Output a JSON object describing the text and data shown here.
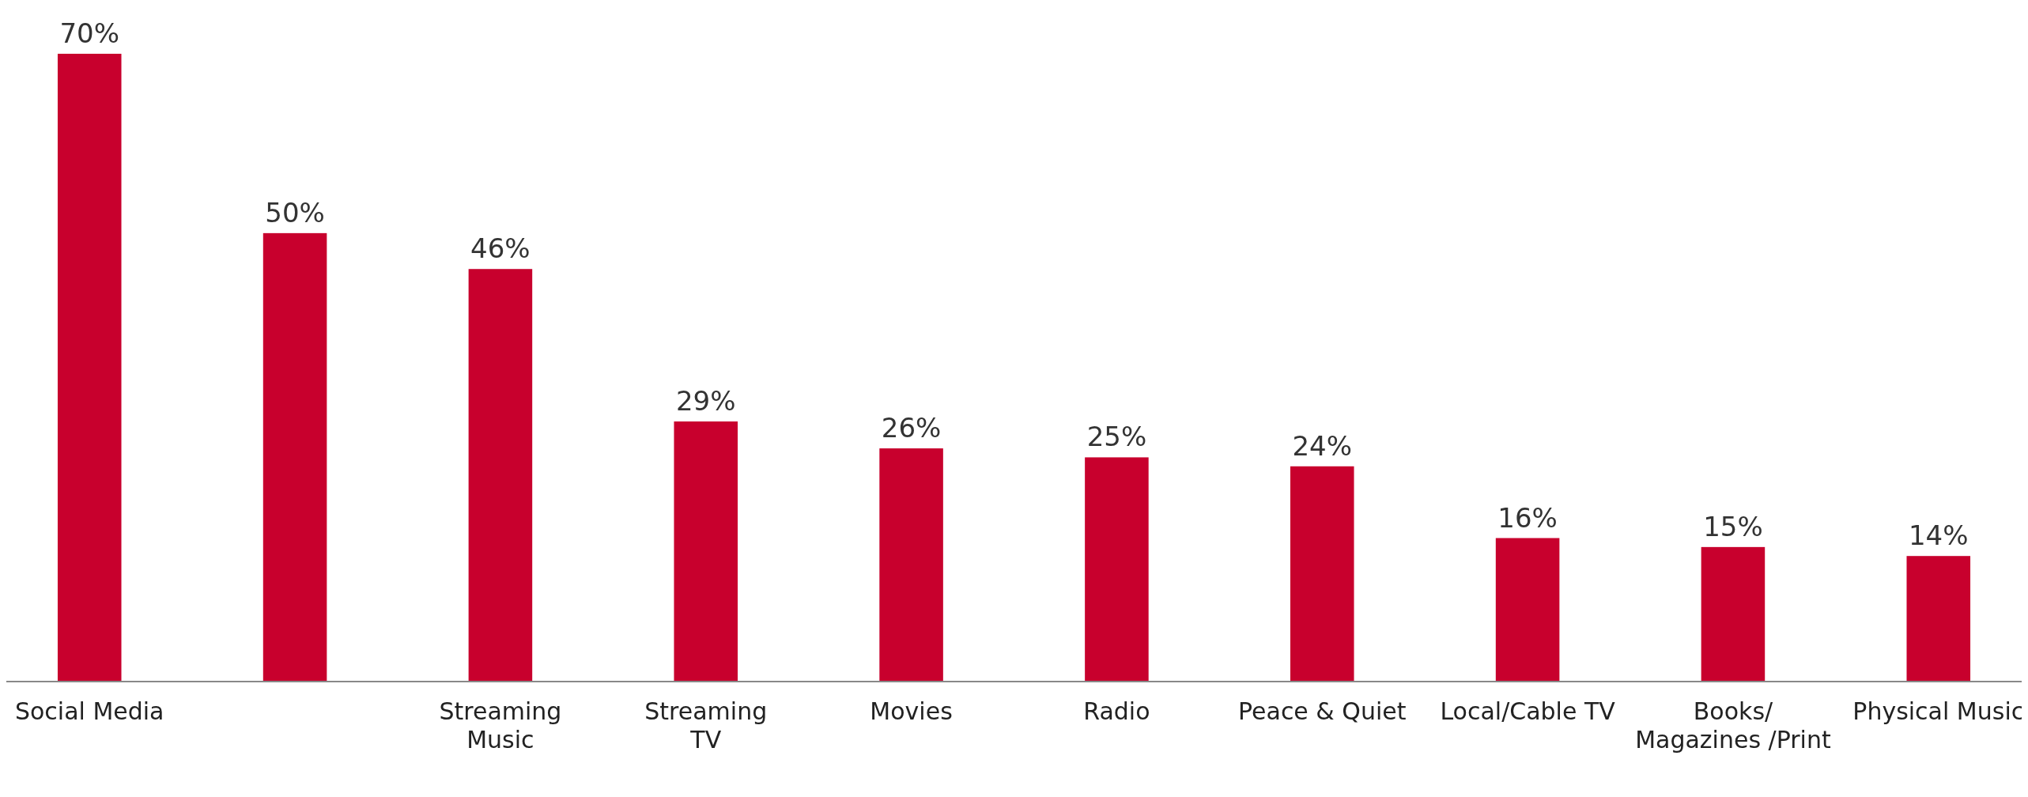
{
  "chart_data": {
    "type": "bar",
    "categories": [
      "Social Media",
      null,
      "Streaming\nMusic",
      "Streaming\nTV",
      "Movies",
      "Radio",
      "Peace & Quiet",
      "Local/Cable TV",
      "Books/\nMagazines /Print",
      "Physical Music"
    ],
    "values": [
      70,
      50,
      46,
      29,
      26,
      25,
      24,
      16,
      15,
      14
    ],
    "value_labels": [
      "70%",
      "50%",
      "46%",
      "29%",
      "26%",
      "25%",
      "24%",
      "16%",
      "15%",
      "14%"
    ],
    "color": "#c8002d"
  }
}
